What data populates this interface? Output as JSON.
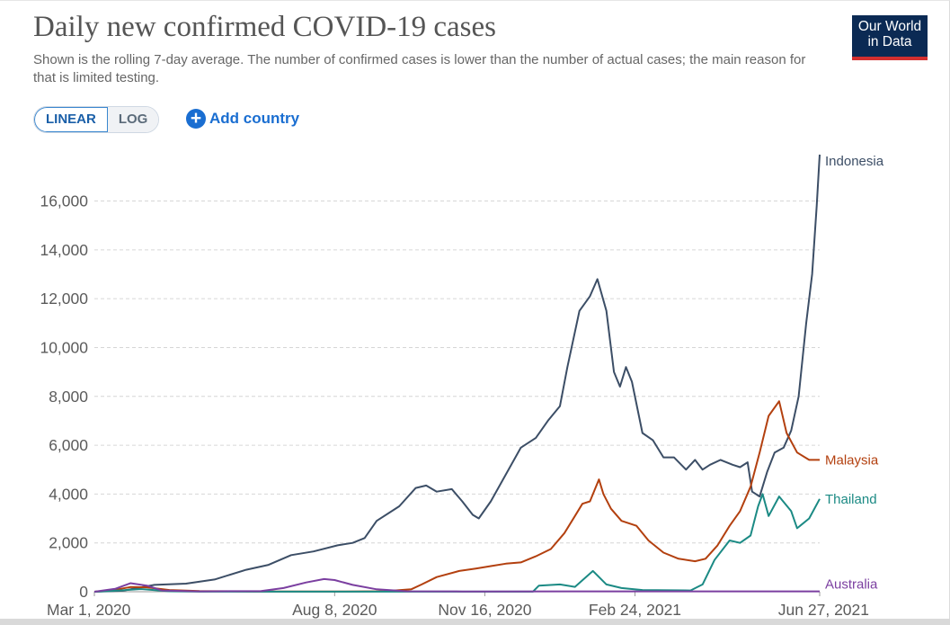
{
  "header": {
    "title": "Daily new confirmed COVID-19 cases",
    "subtitle": "Shown is the rolling 7-day average. The number of confirmed cases is lower than the number of actual cases; the main reason for that is limited testing.",
    "logo_line1": "Our World",
    "logo_line2": "in Data"
  },
  "controls": {
    "linear_label": "LINEAR",
    "log_label": "LOG",
    "add_country_label": "Add country",
    "active_scale": "linear"
  },
  "chart_data": {
    "type": "line",
    "title": "Daily new confirmed COVID-19 cases",
    "xlabel": "",
    "ylabel": "",
    "x_start": "2020-03-01",
    "x_end": "2021-06-27",
    "ylim": [
      0,
      18000
    ],
    "y_ticks": [
      0,
      2000,
      4000,
      6000,
      8000,
      10000,
      12000,
      14000,
      16000
    ],
    "y_tick_labels": [
      "0",
      "2,000",
      "4,000",
      "6,000",
      "8,000",
      "10,000",
      "12,000",
      "14,000",
      "16,000"
    ],
    "x_tick_labels": [
      "Mar 1, 2020",
      "Aug 8, 2020",
      "Nov 16, 2020",
      "Feb 24, 2021",
      "Jun 27, 2021"
    ],
    "x_tick_dates": [
      "2020-03-01",
      "2020-08-08",
      "2020-11-16",
      "2021-02-24",
      "2021-06-27"
    ],
    "grid": true,
    "legend": "labels at line ends (right)",
    "series": [
      {
        "name": "Indonesia",
        "color": "#3c4e66",
        "points": [
          [
            "2020-03-01",
            0
          ],
          [
            "2020-03-20",
            40
          ],
          [
            "2020-04-10",
            280
          ],
          [
            "2020-05-01",
            330
          ],
          [
            "2020-05-20",
            500
          ],
          [
            "2020-06-10",
            900
          ],
          [
            "2020-06-25",
            1100
          ],
          [
            "2020-07-10",
            1500
          ],
          [
            "2020-07-25",
            1650
          ],
          [
            "2020-08-10",
            1900
          ],
          [
            "2020-08-20",
            2000
          ],
          [
            "2020-08-28",
            2200
          ],
          [
            "2020-09-05",
            2900
          ],
          [
            "2020-09-20",
            3500
          ],
          [
            "2020-10-01",
            4250
          ],
          [
            "2020-10-08",
            4350
          ],
          [
            "2020-10-15",
            4100
          ],
          [
            "2020-10-25",
            4200
          ],
          [
            "2020-11-01",
            3700
          ],
          [
            "2020-11-08",
            3150
          ],
          [
            "2020-11-12",
            3000
          ],
          [
            "2020-11-20",
            3700
          ],
          [
            "2020-11-30",
            4800
          ],
          [
            "2020-12-10",
            5900
          ],
          [
            "2020-12-20",
            6300
          ],
          [
            "2020-12-28",
            7000
          ],
          [
            "2021-01-05",
            7600
          ],
          [
            "2021-01-10",
            9200
          ],
          [
            "2021-01-18",
            11500
          ],
          [
            "2021-01-25",
            12100
          ],
          [
            "2021-01-30",
            12800
          ],
          [
            "2021-02-05",
            11500
          ],
          [
            "2021-02-10",
            9000
          ],
          [
            "2021-02-14",
            8400
          ],
          [
            "2021-02-18",
            9200
          ],
          [
            "2021-02-22",
            8600
          ],
          [
            "2021-03-01",
            6500
          ],
          [
            "2021-03-08",
            6200
          ],
          [
            "2021-03-15",
            5500
          ],
          [
            "2021-03-22",
            5500
          ],
          [
            "2021-03-30",
            5000
          ],
          [
            "2021-04-05",
            5400
          ],
          [
            "2021-04-10",
            5000
          ],
          [
            "2021-04-15",
            5200
          ],
          [
            "2021-04-22",
            5400
          ],
          [
            "2021-04-30",
            5200
          ],
          [
            "2021-05-05",
            5100
          ],
          [
            "2021-05-10",
            5300
          ],
          [
            "2021-05-13",
            4100
          ],
          [
            "2021-05-18",
            3900
          ],
          [
            "2021-05-23",
            4900
          ],
          [
            "2021-05-28",
            5700
          ],
          [
            "2021-06-03",
            5900
          ],
          [
            "2021-06-08",
            6600
          ],
          [
            "2021-06-13",
            8000
          ],
          [
            "2021-06-18",
            11000
          ],
          [
            "2021-06-22",
            13000
          ],
          [
            "2021-06-25",
            15800
          ],
          [
            "2021-06-27",
            17900
          ]
        ]
      },
      {
        "name": "Malaysia",
        "color": "#b3400f",
        "points": [
          [
            "2020-03-01",
            0
          ],
          [
            "2020-03-15",
            80
          ],
          [
            "2020-03-25",
            190
          ],
          [
            "2020-04-05",
            180
          ],
          [
            "2020-04-20",
            70
          ],
          [
            "2020-05-10",
            30
          ],
          [
            "2020-06-15",
            10
          ],
          [
            "2020-08-15",
            10
          ],
          [
            "2020-09-10",
            20
          ],
          [
            "2020-09-28",
            100
          ],
          [
            "2020-10-05",
            300
          ],
          [
            "2020-10-15",
            600
          ],
          [
            "2020-10-30",
            850
          ],
          [
            "2020-11-10",
            950
          ],
          [
            "2020-11-20",
            1050
          ],
          [
            "2020-11-30",
            1150
          ],
          [
            "2020-12-10",
            1200
          ],
          [
            "2020-12-20",
            1450
          ],
          [
            "2020-12-30",
            1750
          ],
          [
            "2021-01-08",
            2400
          ],
          [
            "2021-01-15",
            3100
          ],
          [
            "2021-01-20",
            3600
          ],
          [
            "2021-01-25",
            3700
          ],
          [
            "2021-01-31",
            4600
          ],
          [
            "2021-02-03",
            4000
          ],
          [
            "2021-02-08",
            3400
          ],
          [
            "2021-02-15",
            2900
          ],
          [
            "2021-02-25",
            2700
          ],
          [
            "2021-03-05",
            2100
          ],
          [
            "2021-03-15",
            1600
          ],
          [
            "2021-03-25",
            1350
          ],
          [
            "2021-04-05",
            1250
          ],
          [
            "2021-04-12",
            1350
          ],
          [
            "2021-04-20",
            1900
          ],
          [
            "2021-04-28",
            2700
          ],
          [
            "2021-05-05",
            3300
          ],
          [
            "2021-05-12",
            4300
          ],
          [
            "2021-05-18",
            5700
          ],
          [
            "2021-05-24",
            7200
          ],
          [
            "2021-05-31",
            7800
          ],
          [
            "2021-06-05",
            6500
          ],
          [
            "2021-06-12",
            5700
          ],
          [
            "2021-06-20",
            5400
          ],
          [
            "2021-06-27",
            5400
          ]
        ]
      },
      {
        "name": "Thailand",
        "color": "#1b8a84",
        "points": [
          [
            "2020-03-01",
            0
          ],
          [
            "2020-03-20",
            60
          ],
          [
            "2020-04-01",
            110
          ],
          [
            "2020-04-20",
            20
          ],
          [
            "2020-05-10",
            5
          ],
          [
            "2020-12-18",
            5
          ],
          [
            "2020-12-22",
            250
          ],
          [
            "2021-01-05",
            300
          ],
          [
            "2021-01-15",
            200
          ],
          [
            "2021-01-27",
            850
          ],
          [
            "2021-02-05",
            300
          ],
          [
            "2021-02-15",
            150
          ],
          [
            "2021-03-01",
            70
          ],
          [
            "2021-03-20",
            60
          ],
          [
            "2021-04-02",
            50
          ],
          [
            "2021-04-10",
            300
          ],
          [
            "2021-04-18",
            1300
          ],
          [
            "2021-04-28",
            2100
          ],
          [
            "2021-05-05",
            2000
          ],
          [
            "2021-05-12",
            2300
          ],
          [
            "2021-05-17",
            3500
          ],
          [
            "2021-05-20",
            4000
          ],
          [
            "2021-05-24",
            3100
          ],
          [
            "2021-05-31",
            3900
          ],
          [
            "2021-06-08",
            3300
          ],
          [
            "2021-06-12",
            2600
          ],
          [
            "2021-06-20",
            3000
          ],
          [
            "2021-06-27",
            3800
          ]
        ]
      },
      {
        "name": "Australia",
        "color": "#7b3fa0",
        "points": [
          [
            "2020-03-01",
            0
          ],
          [
            "2020-03-15",
            120
          ],
          [
            "2020-03-25",
            350
          ],
          [
            "2020-04-05",
            250
          ],
          [
            "2020-04-15",
            50
          ],
          [
            "2020-05-10",
            15
          ],
          [
            "2020-06-20",
            30
          ],
          [
            "2020-07-05",
            150
          ],
          [
            "2020-07-20",
            380
          ],
          [
            "2020-08-01",
            520
          ],
          [
            "2020-08-08",
            480
          ],
          [
            "2020-08-20",
            280
          ],
          [
            "2020-09-05",
            100
          ],
          [
            "2020-09-25",
            20
          ],
          [
            "2020-11-01",
            10
          ],
          [
            "2021-06-27",
            15
          ]
        ]
      }
    ]
  }
}
